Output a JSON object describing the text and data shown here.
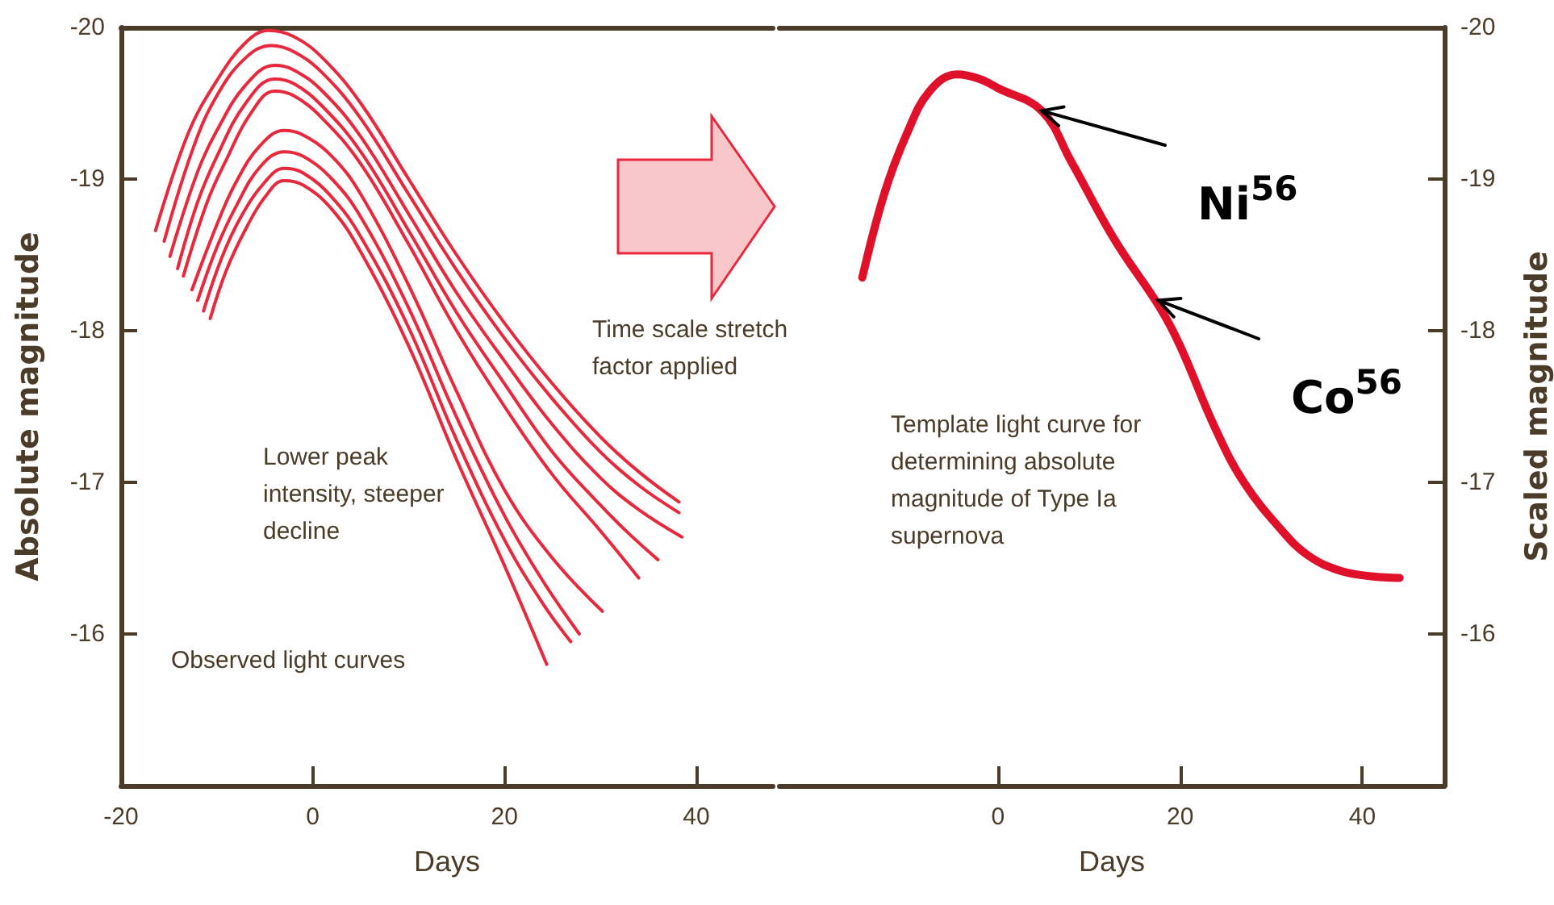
{
  "chart_data": [
    {
      "type": "line",
      "xlabel": "Days",
      "ylabel": "Absolute magnitude",
      "xlim": [
        -20,
        48
      ],
      "xticks": [
        -20,
        0,
        20,
        40
      ],
      "ylim": [
        -15,
        -20
      ],
      "yticks": [
        -20,
        -19,
        -18,
        -17,
        -16
      ],
      "annotations": [
        "Lower peak intensity, steeper decline",
        "Observed light curves",
        "Time scale stretch factor applied"
      ],
      "series": [
        {
          "color": "#e8283c",
          "x": [
            -16.4,
            -13,
            -10,
            -7,
            -4.6,
            -2,
            1,
            5,
            10,
            15,
            20,
            25,
            30,
            34,
            38.2
          ],
          "values": [
            -18.66,
            -19.3,
            -19.65,
            -19.9,
            -19.98,
            -19.94,
            -19.8,
            -19.5,
            -19.0,
            -18.5,
            -18.05,
            -17.65,
            -17.3,
            -17.07,
            -16.87
          ]
        },
        {
          "color": "#e8283c",
          "x": [
            -15.5,
            -12.5,
            -10,
            -7,
            -4.3,
            -2,
            1,
            5,
            10,
            15,
            20,
            25,
            30,
            34,
            38.2
          ],
          "values": [
            -18.59,
            -19.2,
            -19.55,
            -19.8,
            -19.88,
            -19.84,
            -19.7,
            -19.4,
            -18.9,
            -18.4,
            -17.95,
            -17.55,
            -17.2,
            -16.98,
            -16.8
          ]
        },
        {
          "color": "#e8283c",
          "x": [
            -14.9,
            -12,
            -10,
            -7,
            -4,
            -2,
            1,
            5,
            10,
            15,
            20,
            25,
            30,
            34,
            38.5
          ],
          "values": [
            -18.49,
            -19.05,
            -19.32,
            -19.62,
            -19.75,
            -19.72,
            -19.58,
            -19.28,
            -18.77,
            -18.25,
            -17.8,
            -17.38,
            -17.03,
            -16.82,
            -16.64
          ]
        },
        {
          "color": "#e8283c",
          "x": [
            -14.1,
            -12,
            -10,
            -7,
            -4,
            -2,
            1,
            5,
            10,
            15,
            20,
            25,
            30,
            33,
            36
          ],
          "values": [
            -18.41,
            -18.85,
            -19.15,
            -19.5,
            -19.66,
            -19.63,
            -19.48,
            -19.18,
            -18.66,
            -18.12,
            -17.65,
            -17.2,
            -16.85,
            -16.66,
            -16.49
          ]
        },
        {
          "color": "#e8283c",
          "x": [
            -13.5,
            -11,
            -9,
            -6.5,
            -4,
            -2,
            1,
            5,
            10,
            15,
            20,
            25,
            30,
            34
          ],
          "values": [
            -18.36,
            -18.85,
            -19.13,
            -19.43,
            -19.58,
            -19.55,
            -19.4,
            -19.1,
            -18.57,
            -18.0,
            -17.5,
            -17.05,
            -16.68,
            -16.37
          ]
        },
        {
          "color": "#e8283c",
          "x": [
            -12.6,
            -10,
            -8,
            -5.5,
            -3,
            -1,
            2,
            5,
            10,
            15,
            20,
            25,
            30.2
          ],
          "values": [
            -18.27,
            -18.7,
            -18.98,
            -19.22,
            -19.32,
            -19.29,
            -19.15,
            -18.9,
            -18.3,
            -17.6,
            -16.95,
            -16.5,
            -16.15
          ]
        },
        {
          "color": "#e8283c",
          "x": [
            -12,
            -10,
            -8,
            -5.5,
            -3,
            -1,
            2,
            5,
            10,
            15,
            20,
            24,
            27.8
          ],
          "values": [
            -18.2,
            -18.55,
            -18.82,
            -19.08,
            -19.18,
            -19.15,
            -19.0,
            -18.75,
            -18.15,
            -17.43,
            -16.78,
            -16.35,
            -16.0
          ]
        },
        {
          "color": "#e8283c",
          "x": [
            -11.4,
            -9.5,
            -7.5,
            -5,
            -3,
            -1,
            2,
            5,
            10,
            15,
            20,
            24,
            26.9
          ],
          "values": [
            -18.13,
            -18.48,
            -18.75,
            -18.98,
            -19.07,
            -19.04,
            -18.88,
            -18.62,
            -18.02,
            -17.28,
            -16.62,
            -16.2,
            -15.95
          ]
        },
        {
          "color": "#e8283c",
          "x": [
            -10.7,
            -9,
            -7,
            -5,
            -3,
            -1,
            2,
            5,
            10,
            15,
            20,
            24.4
          ],
          "values": [
            -18.08,
            -18.4,
            -18.67,
            -18.88,
            -18.99,
            -18.96,
            -18.8,
            -18.52,
            -17.9,
            -17.15,
            -16.45,
            -15.8
          ]
        }
      ]
    },
    {
      "type": "line",
      "xlabel": "Days",
      "ylabel": "Scaled magnitude",
      "xlim": [
        -24,
        49
      ],
      "xticks": [
        0,
        20,
        40
      ],
      "ylim": [
        -15,
        -20
      ],
      "yticks": [
        -20,
        -19,
        -18,
        -17,
        -16
      ],
      "annotations": [
        "Template light curve for determining absolute magnitude of Type Ia supernova",
        {
          "text": "Ni$^{56}$",
          "x": 4.8,
          "y": -19.45
        },
        {
          "text": "Co$^{56}$",
          "x": 17.6,
          "y": -18.2
        }
      ],
      "series": [
        {
          "color": "#e0102a",
          "x": [
            -14.9,
            -12.5,
            -10,
            -7.5,
            -4.5,
            -2,
            0,
            4.8,
            8,
            12.8,
            17.8,
            20,
            23.9,
            27,
            31.2,
            34,
            37.4,
            41,
            44.1
          ],
          "values": [
            -18.35,
            -18.9,
            -19.3,
            -19.58,
            -19.69,
            -19.66,
            -19.6,
            -19.45,
            -19.12,
            -18.6,
            -18.15,
            -17.9,
            -17.35,
            -17.0,
            -16.68,
            -16.52,
            -16.42,
            -16.38,
            -16.37
          ]
        }
      ]
    }
  ]
}
